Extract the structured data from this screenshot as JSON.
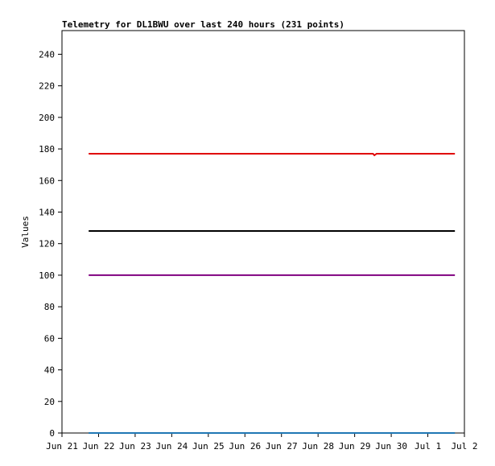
{
  "chart_data": {
    "type": "line",
    "title": "Telemetry for DL1BWU over last 240 hours (231 points)",
    "y_label": "Values",
    "xlim": [
      0,
      11
    ],
    "xticks": [
      {
        "value": 0,
        "label": "Jun 21"
      },
      {
        "value": 1,
        "label": "Jun 22"
      },
      {
        "value": 2,
        "label": "Jun 23"
      },
      {
        "value": 3,
        "label": "Jun 24"
      },
      {
        "value": 4,
        "label": "Jun 25"
      },
      {
        "value": 5,
        "label": "Jun 26"
      },
      {
        "value": 6,
        "label": "Jun 27"
      },
      {
        "value": 7,
        "label": "Jun 28"
      },
      {
        "value": 8,
        "label": "Jun 29"
      },
      {
        "value": 9,
        "label": "Jun 30"
      },
      {
        "value": 10,
        "label": "Jul 1"
      },
      {
        "value": 11,
        "label": "Jul 2"
      }
    ],
    "ylim": [
      0,
      255
    ],
    "yticks": [
      0,
      20,
      40,
      60,
      80,
      100,
      120,
      140,
      160,
      180,
      200,
      220,
      240
    ],
    "series": [
      {
        "color": "#e00000",
        "x": [
          0.73,
          8.5,
          8.54,
          8.6,
          10.74
        ],
        "values": [
          177,
          177,
          176,
          177,
          177
        ]
      },
      {
        "color": "#000000",
        "x": [
          0.73,
          10.74
        ],
        "values": [
          128,
          128
        ]
      },
      {
        "color": "#800080",
        "x": [
          0.73,
          10.74
        ],
        "values": [
          100,
          100
        ]
      },
      {
        "color": "#1f77b4",
        "x": [
          0.73,
          10.74
        ],
        "values": [
          0,
          0
        ]
      }
    ]
  }
}
